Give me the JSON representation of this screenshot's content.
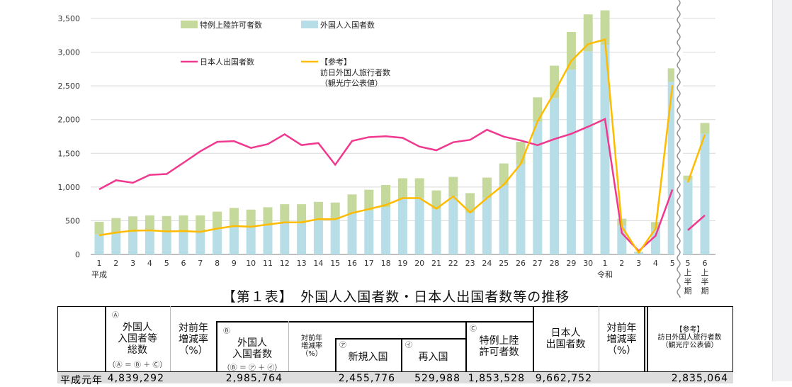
{
  "chart_data": {
    "type": "bar+line",
    "y_ticks": [
      "0",
      "500",
      "1,000",
      "1,500",
      "2,000",
      "2,500",
      "3,000",
      "3,500"
    ],
    "ylim": [
      0,
      3500
    ],
    "era_labels": {
      "heisei": "平成",
      "reiwa": "令和"
    },
    "categories": [
      "1",
      "2",
      "3",
      "4",
      "5",
      "6",
      "7",
      "8",
      "9",
      "10",
      "11",
      "12",
      "13",
      "14",
      "15",
      "16",
      "17",
      "18",
      "19",
      "20",
      "21",
      "22",
      "23",
      "24",
      "25",
      "26",
      "27",
      "28",
      "29",
      "30",
      "1",
      "2",
      "3",
      "4",
      "5",
      "5上半期",
      "6上半期"
    ],
    "series": [
      {
        "name": "外国人入国者数",
        "type": "bar",
        "color": "#b7dde6",
        "values": [
          299,
          310,
          330,
          340,
          330,
          350,
          340,
          380,
          420,
          400,
          430,
          470,
          460,
          530,
          530,
          610,
          650,
          700,
          830,
          840,
          670,
          860,
          620,
          840,
          1030,
          1340,
          1970,
          2320,
          2740,
          3010,
          3110,
          430,
          35,
          380,
          2560,
          1100,
          1790
        ]
      },
      {
        "name": "特例上陸許可者数",
        "type": "bar-stack",
        "color": "#c5d99d",
        "values": [
          185,
          230,
          235,
          240,
          240,
          230,
          240,
          255,
          270,
          265,
          270,
          275,
          285,
          250,
          240,
          280,
          310,
          330,
          300,
          290,
          280,
          290,
          290,
          300,
          320,
          330,
          360,
          480,
          560,
          550,
          510,
          100,
          5,
          100,
          200,
          70,
          160
        ]
      },
      {
        "name": "日本人出国者数",
        "type": "line",
        "color": "#f0388f",
        "values": [
          966,
          1100,
          1063,
          1180,
          1193,
          1360,
          1530,
          1670,
          1680,
          1580,
          1636,
          1782,
          1622,
          1652,
          1330,
          1683,
          1740,
          1753,
          1729,
          1599,
          1545,
          1664,
          1699,
          1849,
          1747,
          1690,
          1621,
          1711,
          1789,
          1895,
          2008,
          317,
          51,
          277,
          962,
          360,
          580
        ]
      },
      {
        "name": "【参考】",
        "name_line2": "訪日外国人旅行者数",
        "name_line3": "（観光庁公表値）",
        "type": "line",
        "color": "#ffbb00",
        "values": [
          284,
          324,
          354,
          358,
          342,
          347,
          335,
          384,
          422,
          411,
          444,
          476,
          477,
          524,
          521,
          614,
          673,
          733,
          835,
          835,
          679,
          861,
          622,
          836,
          1036,
          1341,
          1974,
          2404,
          2869,
          3119,
          3188,
          412,
          25,
          383,
          2507,
          1071,
          1778
        ]
      }
    ],
    "legend_placement": "top-left"
  },
  "table": {
    "title": "【第１表】　外国人入国者数・日本人出国者数等の推移",
    "headers": {
      "a_mark": "Ⓐ",
      "a_label": [
        "外国人",
        "入国者等",
        "総数"
      ],
      "a_formula": "（Ⓐ ＝ Ⓑ ＋ Ⓒ）",
      "rate1": [
        "対前年",
        "増減率",
        "（%）"
      ],
      "b_mark": "Ⓑ",
      "b_label": [
        "外国人",
        "入国者数"
      ],
      "b_formula": "（Ⓑ ＝ ㋐ ＋ ㋑）",
      "rate2": [
        "対前年",
        "増減率",
        "（%）"
      ],
      "new_mark": "㋐",
      "new_label": "新規入国",
      "re_mark": "㋑",
      "re_label": "再入国",
      "c_mark": "Ⓒ",
      "c_label": [
        "特例上陸",
        "許可者数"
      ],
      "jp_label": [
        "日本人",
        "出国者数"
      ],
      "rate3": [
        "対前年",
        "増減率",
        "（%）"
      ],
      "ref_label": [
        "【参考】",
        "訪日外国人旅行者数",
        "（観光庁公表値）"
      ]
    },
    "rows": [
      {
        "label": "平成元年",
        "a": "4,839,292",
        "b": "2,985,764",
        "new": "2,455,776",
        "re": "529,988",
        "c": "1,853,528",
        "jp": "9,662,752",
        "ref": "2,835,064"
      }
    ]
  }
}
